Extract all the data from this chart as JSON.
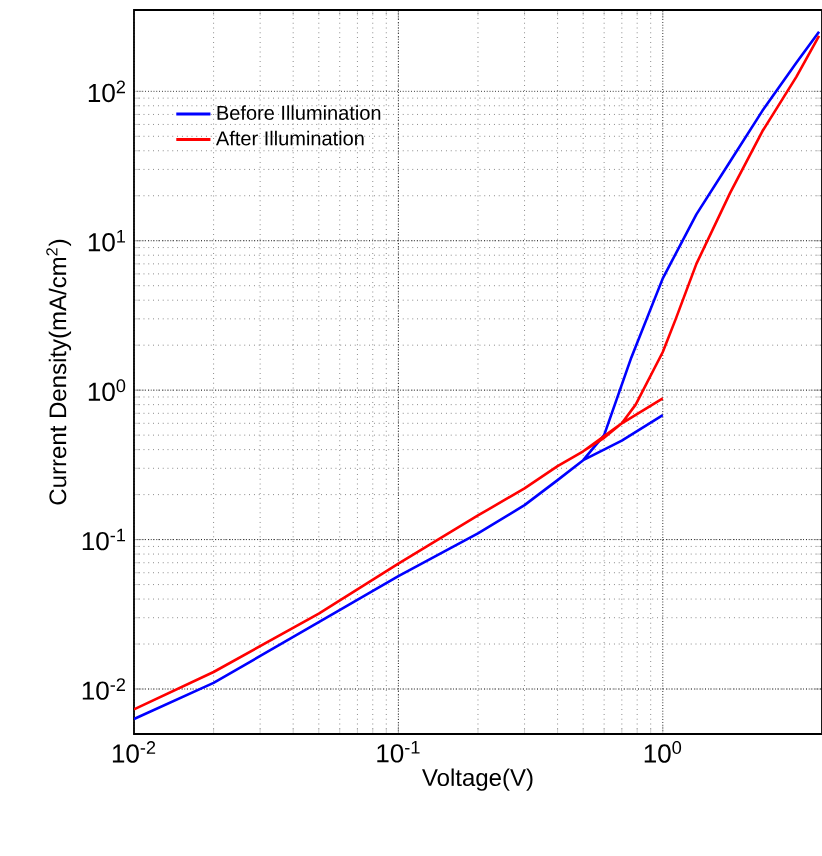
{
  "chart_data": {
    "type": "line",
    "xlabel": "Voltage(V)",
    "ylabel": "Current Density(mA/cm$^{2}$)",
    "log": "xy",
    "grid": true,
    "legend": "top left",
    "marker": "none",
    "line_style": "solid",
    "xlim": [
      0.01,
      4
    ],
    "ylim": [
      0.005,
      350
    ],
    "xticks": [
      {
        "value": 0.01,
        "label": "10$^{-2}$"
      },
      {
        "value": 0.1,
        "label": "10$^{-1}$"
      },
      {
        "value": 1,
        "label": "10$^{0}$"
      }
    ],
    "yticks": [
      {
        "value": 0.01,
        "label": "10$^{-2}$"
      },
      {
        "value": 0.1,
        "label": "10$^{-1}$"
      },
      {
        "value": 1,
        "label": "10$^{0}$"
      },
      {
        "value": 10,
        "label": "10$^{1}$"
      },
      {
        "value": 100,
        "label": "10$^{2}$"
      }
    ],
    "series": [
      {
        "name": "Before Illumination",
        "color": "#0000ff",
        "x": [
          0.01,
          0.02,
          0.05,
          0.1,
          0.2,
          0.3,
          0.4,
          0.5,
          0.7,
          1.0,
          null,
          0.5,
          0.6,
          0.76,
          1.0,
          1.34,
          1.8,
          2.38,
          3.2,
          3.9
        ],
        "values": [
          0.0063,
          0.011,
          0.028,
          0.057,
          0.11,
          0.17,
          0.25,
          0.34,
          0.46,
          0.68,
          null,
          0.34,
          0.5,
          1.65,
          5.6,
          15,
          34,
          74,
          155,
          250
        ]
      },
      {
        "name": "After Illumination",
        "color": "#ff0000",
        "x": [
          0.01,
          0.02,
          0.05,
          0.1,
          0.2,
          0.3,
          0.4,
          0.5,
          0.7,
          1.0,
          null,
          0.5,
          0.6,
          0.7,
          0.79,
          1.0,
          1.12,
          1.34,
          1.8,
          2.38,
          3.2,
          3.9
        ],
        "values": [
          0.0073,
          0.013,
          0.032,
          0.069,
          0.145,
          0.22,
          0.31,
          0.39,
          0.6,
          0.88,
          null,
          0.39,
          0.48,
          0.6,
          0.8,
          1.8,
          3.0,
          7.0,
          21,
          54,
          125,
          235
        ]
      }
    ]
  }
}
